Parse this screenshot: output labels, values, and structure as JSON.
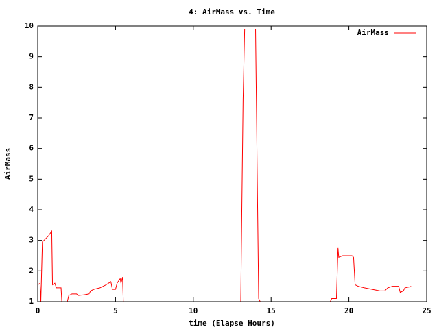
{
  "chart_data": {
    "type": "line",
    "title": "4: AirMass vs. Time",
    "x_label": "time (Elapse Hours)",
    "y_label": "AirMass",
    "x": [
      0,
      0.1,
      0.15,
      0.2,
      0.3,
      0.5,
      0.7,
      0.9,
      0.95,
      1.1,
      1.2,
      1.5,
      1.55,
      1.9,
      2.0,
      2.2,
      2.5,
      2.6,
      3.0,
      3.3,
      3.4,
      3.6,
      4.0,
      4.4,
      4.7,
      4.8,
      5.0,
      5.1,
      5.3,
      5.35,
      5.45,
      5.5,
      13.05,
      13.1,
      13.2,
      13.3,
      14.0,
      14.1,
      14.2,
      14.3,
      18.8,
      18.9,
      19.2,
      19.3,
      19.35,
      19.6,
      19.9,
      20.2,
      20.3,
      20.4,
      20.6,
      21.0,
      21.5,
      22.0,
      22.3,
      22.5,
      22.8,
      23.0,
      23.2,
      23.3,
      23.5,
      23.6,
      23.9,
      24.0
    ],
    "series": [
      {
        "name": "AirMass",
        "color": "#ff0000",
        "values": [
          1.55,
          1.58,
          1.6,
          1.0,
          2.95,
          3.05,
          3.15,
          3.3,
          1.55,
          1.6,
          1.45,
          1.45,
          1.0,
          1.0,
          1.2,
          1.25,
          1.25,
          1.2,
          1.22,
          1.25,
          1.35,
          1.4,
          1.45,
          1.55,
          1.65,
          1.4,
          1.4,
          1.6,
          1.75,
          1.6,
          1.8,
          1.0,
          1.0,
          3.2,
          7.6,
          9.9,
          9.9,
          5.5,
          1.1,
          1.0,
          1.0,
          1.1,
          1.1,
          2.75,
          2.45,
          2.5,
          2.5,
          2.5,
          2.45,
          1.55,
          1.5,
          1.45,
          1.4,
          1.35,
          1.35,
          1.45,
          1.5,
          1.5,
          1.5,
          1.3,
          1.35,
          1.45,
          1.48,
          1.5
        ]
      }
    ],
    "xlim": [
      0,
      25
    ],
    "xticks": [
      0,
      5,
      10,
      15,
      20,
      25
    ],
    "ylim": [
      1,
      10
    ],
    "yticks": [
      1,
      2,
      3,
      4,
      5,
      6,
      7,
      8,
      9,
      10
    ],
    "legend": "top right"
  }
}
